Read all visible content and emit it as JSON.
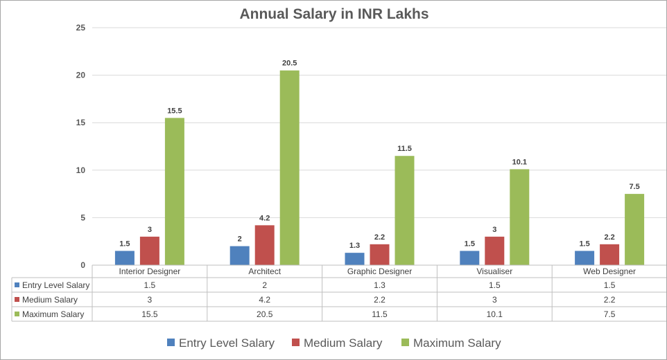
{
  "chart_data": {
    "type": "bar",
    "title": "Annual Salary in INR Lakhs",
    "categories": [
      "Interior Designer",
      "Architect",
      "Graphic Designer",
      "Visualiser",
      "Web Designer"
    ],
    "series": [
      {
        "name": "Entry Level Salary",
        "color": "#4F81BD",
        "values": [
          1.5,
          2,
          1.3,
          1.5,
          1.5
        ]
      },
      {
        "name": "Medium Salary",
        "color": "#C0504D",
        "values": [
          3,
          4.2,
          2.2,
          3,
          2.2
        ]
      },
      {
        "name": "Maximum Salary",
        "color": "#9BBB59",
        "values": [
          15.5,
          20.5,
          11.5,
          10.1,
          7.5
        ]
      }
    ],
    "ylim": [
      0,
      25
    ],
    "yticks": [
      0,
      5,
      10,
      15,
      20,
      25
    ],
    "grid": true,
    "data_table": true,
    "legend": "bottom",
    "xlabel": "",
    "ylabel": ""
  }
}
